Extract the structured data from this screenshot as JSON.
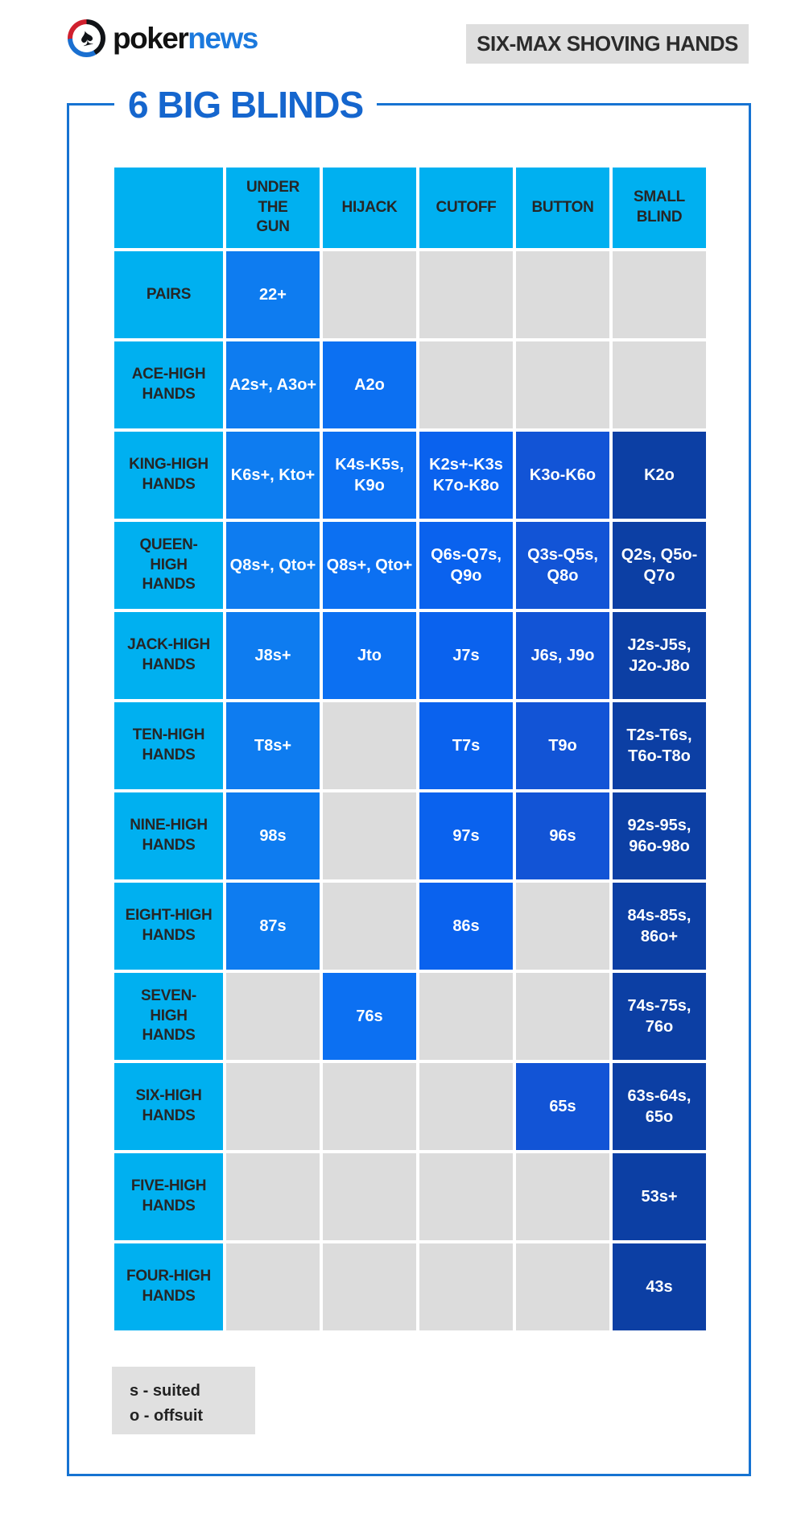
{
  "logo": {
    "word1": "poker",
    "word2": "news",
    "icon": "spade-icon"
  },
  "badge_label": "SIX-MAX SHOVING HANDS",
  "panel": {
    "title": "6 BIG BLINDS"
  },
  "legend": {
    "line1": "s - suited",
    "line2": "o - offsuit"
  },
  "colors": {
    "cyan_header": "#00b0f0",
    "empty_cell": "#dcdcdc",
    "frame_blue": "#1673d2",
    "title_blue": "#1566ce",
    "badge_gray": "#dedede",
    "column_fills": [
      "#0e7cf0",
      "#0c70f2",
      "#0a62ee",
      "#1254d6",
      "#0c3fa4"
    ]
  },
  "chart_data": {
    "type": "table",
    "title": "6 BIG BLINDS",
    "columns": [
      "UNDER THE GUN",
      "HIJACK",
      "CUTOFF",
      "BUTTON",
      "SMALL BLIND"
    ],
    "rows": [
      {
        "label": "PAIRS",
        "cells": [
          "22+",
          "",
          "",
          "",
          ""
        ]
      },
      {
        "label": "ACE-HIGH HANDS",
        "cells": [
          "A2s+, A3o+",
          "A2o",
          "",
          "",
          ""
        ]
      },
      {
        "label": "KING-HIGH HANDS",
        "cells": [
          "K6s+, Kto+",
          "K4s-K5s, K9o",
          "K2s+-K3s K7o-K8o",
          "K3o-K6o",
          "K2o"
        ]
      },
      {
        "label": "QUEEN-HIGH HANDS",
        "cells": [
          "Q8s+, Qto+",
          "Q8s+, Qto+",
          "Q6s-Q7s, Q9o",
          "Q3s-Q5s, Q8o",
          "Q2s, Q5o-Q7o"
        ]
      },
      {
        "label": "JACK-HIGH HANDS",
        "cells": [
          "J8s+",
          "Jto",
          "J7s",
          "J6s, J9o",
          "J2s-J5s, J2o-J8o"
        ]
      },
      {
        "label": "TEN-HIGH HANDS",
        "cells": [
          "T8s+",
          "",
          "T7s",
          "T9o",
          "T2s-T6s, T6o-T8o"
        ]
      },
      {
        "label": "NINE-HIGH HANDS",
        "cells": [
          "98s",
          "",
          "97s",
          "96s",
          "92s-95s, 96o-98o"
        ]
      },
      {
        "label": "EIGHT-HIGH HANDS",
        "cells": [
          "87s",
          "",
          "86s",
          "",
          "84s-85s, 86o+"
        ]
      },
      {
        "label": "SEVEN-HIGH HANDS",
        "cells": [
          "",
          "76s",
          "",
          "",
          "74s-75s, 76o"
        ]
      },
      {
        "label": "SIX-HIGH HANDS",
        "cells": [
          "",
          "",
          "",
          "65s",
          "63s-64s, 65o"
        ]
      },
      {
        "label": "FIVE-HIGH HANDS",
        "cells": [
          "",
          "",
          "",
          "",
          "53s+"
        ]
      },
      {
        "label": "FOUR-HIGH HANDS",
        "cells": [
          "",
          "",
          "",
          "",
          "43s"
        ]
      }
    ]
  }
}
